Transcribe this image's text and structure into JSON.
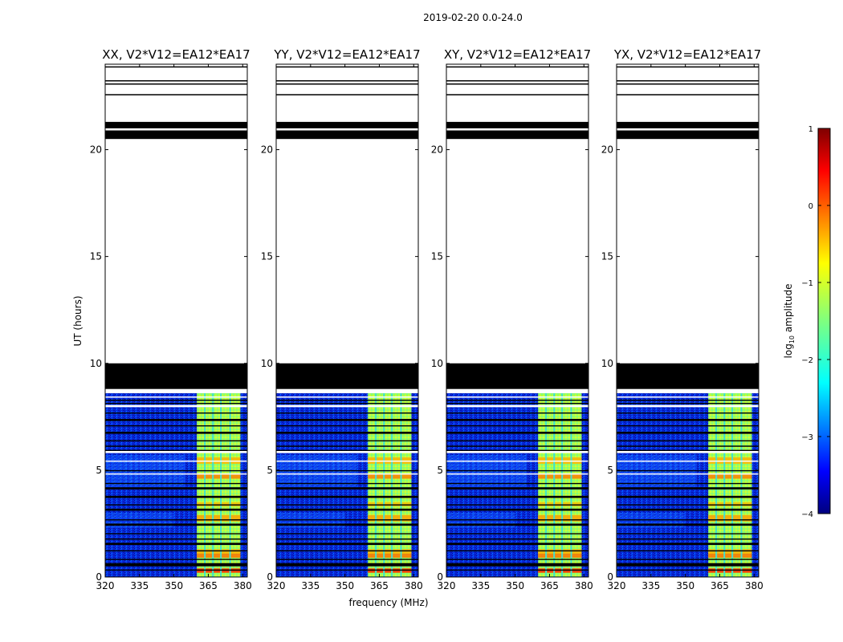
{
  "chart_data": {
    "type": "heatmap",
    "suptitle": "2019-02-20 0.0-24.0",
    "xlabel": "frequency (MHz)",
    "ylabel": "UT (hours)",
    "xlim": [
      320,
      382
    ],
    "ylim": [
      0,
      24
    ],
    "xticks": [
      "320",
      "335",
      "350",
      "365",
      "380"
    ],
    "yticks": [
      "0",
      "5",
      "10",
      "15",
      "20"
    ],
    "panels": [
      {
        "title": "XX, V2*V12=EA12*EA17"
      },
      {
        "title": "YY, V2*V12=EA12*EA17"
      },
      {
        "title": "XY, V2*V12=EA12*EA17"
      },
      {
        "title": "YX, V2*V12=EA12*EA17"
      }
    ],
    "colorbar": {
      "label": "log10 amplitude",
      "range": [
        -4,
        1
      ],
      "ticks": [
        "1",
        "0",
        "−1",
        "−2",
        "−3",
        "−4"
      ],
      "colormap": [
        "#00007f",
        "#0000ff",
        "#007fff",
        "#00ffff",
        "#7fff7f",
        "#ffff00",
        "#ff7f00",
        "#ff0000",
        "#7f0000"
      ]
    },
    "high_band_mhz": [
      360,
      379
    ],
    "channel_gaps_mhz": [
      363.5,
      367,
      370.5,
      374.5
    ],
    "data_ends_hours": 8.6,
    "flagged_hours": [
      [
        20.5,
        20.9
      ],
      [
        21.0,
        21.3
      ],
      [
        8.8,
        10.0
      ],
      [
        7.3,
        7.4
      ],
      [
        6.7,
        6.8
      ],
      [
        6.1,
        6.15
      ],
      [
        4.1,
        4.2
      ],
      [
        3.7,
        3.8
      ],
      [
        3.1,
        3.2
      ],
      [
        2.4,
        2.5
      ],
      [
        1.5,
        1.6
      ],
      [
        0.5,
        0.65
      ]
    ],
    "blank_hours": [
      [
        22.3,
        22.5
      ],
      [
        22.8,
        23.0
      ],
      [
        23.5,
        23.8
      ],
      [
        8.4,
        8.45
      ],
      [
        7.95,
        8.05
      ],
      [
        5.8,
        5.9
      ],
      [
        5.4,
        5.45
      ],
      [
        4.8,
        4.85
      ]
    ]
  }
}
